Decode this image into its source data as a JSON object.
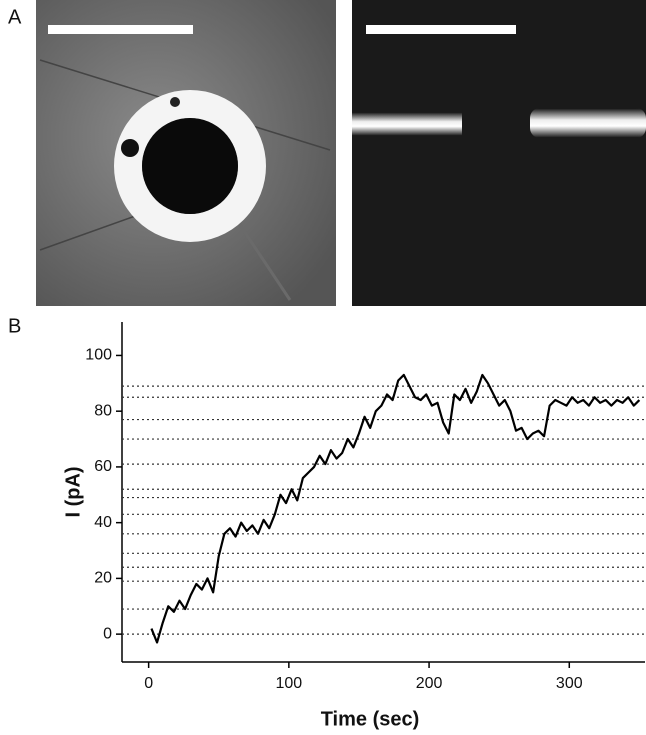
{
  "panel_labels": [
    "A",
    "B"
  ],
  "chart_data": {
    "type": "line",
    "xlabel": "Time (sec)",
    "ylabel": "I (pA)",
    "x": [
      2,
      6,
      10,
      14,
      18,
      22,
      26,
      30,
      34,
      38,
      42,
      46,
      50,
      54,
      58,
      62,
      66,
      70,
      74,
      78,
      82,
      86,
      90,
      94,
      98,
      102,
      106,
      110,
      114,
      118,
      122,
      126,
      130,
      134,
      138,
      142,
      146,
      150,
      154,
      158,
      162,
      166,
      170,
      174,
      178,
      182,
      186,
      190,
      194,
      198,
      202,
      206,
      210,
      214,
      218,
      222,
      226,
      230,
      234,
      238,
      242,
      246,
      250,
      254,
      258,
      262,
      266,
      270,
      274,
      278,
      282,
      286,
      290,
      294,
      298,
      302,
      306,
      310,
      314,
      318,
      322,
      326,
      330,
      334,
      338,
      342,
      346,
      350
    ],
    "values": [
      2,
      -3,
      4,
      10,
      8,
      12,
      9,
      14,
      18,
      16,
      20,
      15,
      28,
      36,
      38,
      35,
      40,
      37,
      39,
      36,
      41,
      38,
      43,
      50,
      47,
      52,
      48,
      56,
      58,
      60,
      64,
      61,
      66,
      63,
      65,
      70,
      67,
      72,
      78,
      74,
      80,
      82,
      86,
      84,
      91,
      93,
      89,
      85,
      84,
      86,
      82,
      83,
      76,
      72,
      86,
      84,
      88,
      83,
      87,
      93,
      90,
      86,
      82,
      84,
      80,
      73,
      74,
      70,
      72,
      73,
      71,
      82,
      84,
      83,
      82,
      85,
      83,
      84,
      82,
      85,
      83,
      84,
      82,
      84,
      83,
      85,
      82,
      84
    ],
    "color": "#000000",
    "reference_lines": [
      0,
      9,
      19,
      24,
      29,
      36,
      43,
      49,
      52,
      61,
      70,
      77,
      85,
      89
    ],
    "xlim": [
      -19,
      354
    ],
    "ylim": [
      -10,
      112
    ],
    "xticks": [
      0,
      100,
      200,
      300
    ],
    "yticks": [
      0,
      20,
      40,
      60,
      80,
      100
    ]
  }
}
